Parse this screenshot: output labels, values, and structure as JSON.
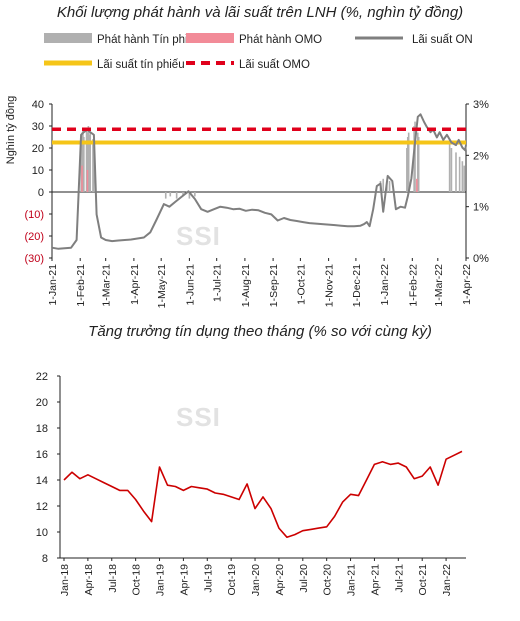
{
  "chart_data": [
    {
      "type": "line",
      "title": "Khối lượng phát hành và lãi suất trên LNH (%, nghìn tỷ đồng)",
      "ylabel": "Nghìn tỷ đồng",
      "ylim": [
        -30,
        40
      ],
      "y2lim": [
        0,
        3
      ],
      "yticks": [
        "40",
        "30",
        "20",
        "10",
        "0",
        "(10)",
        "(20)",
        "(30)"
      ],
      "yticks_right": [
        "3%",
        "2%",
        "1%",
        "0%"
      ],
      "x_tick_labels": [
        "1-Jan-21",
        "1-Feb-21",
        "1-Mar-21",
        "1-Apr-21",
        "1-May-21",
        "1-Jun-21",
        "1-Jul-21",
        "1-Aug-21",
        "1-Sep-21",
        "1-Oct-21",
        "1-Nov-21",
        "1-Dec-21",
        "1-Jan-22",
        "1-Feb-22",
        "1-Mar-22",
        "1-Apr-22"
      ],
      "legend": [
        "Phát hành Tín phiếu",
        "Phát hành OMO",
        "Lãi suất ON",
        "Lãi suất tín phiếu",
        "Lãi suất OMO"
      ],
      "legend_position": "top",
      "colors": {
        "bill_issuance": "#b0b0b0",
        "omo_issuance": "#f28b98",
        "on_rate": "#7f7f7f",
        "bill_rate": "#f5c518",
        "omo_rate": "#e0001b"
      },
      "series": [
        {
          "name": "Phát hành Tín phiếu",
          "kind": "bar",
          "axis": "left",
          "x": [
            "2021-02-02",
            "2021-02-03",
            "2021-02-04",
            "2021-02-05",
            "2021-02-08",
            "2021-02-09",
            "2021-02-10",
            "2021-02-11",
            "2021-02-12",
            "2021-02-15",
            "2021-02-16",
            "2021-05-06",
            "2021-05-11",
            "2021-05-18",
            "2021-05-25",
            "2021-06-01",
            "2021-06-07",
            "2021-12-28",
            "2021-12-31",
            "2022-01-04",
            "2022-01-07",
            "2022-01-26",
            "2022-01-27",
            "2022-01-28",
            "2022-02-03",
            "2022-02-04",
            "2022-02-07",
            "2022-02-08",
            "2022-03-14",
            "2022-03-16",
            "2022-03-21",
            "2022-03-25",
            "2022-03-28",
            "2022-03-30"
          ],
          "y": [
            22,
            27,
            29,
            25,
            28,
            27,
            30,
            26,
            27,
            24,
            18,
            -3,
            -2,
            -3,
            -2,
            -3,
            -2,
            5,
            6,
            4,
            5,
            20,
            25,
            27,
            30,
            32,
            27,
            25,
            22,
            20,
            18,
            16,
            14,
            12
          ]
        },
        {
          "name": "Phát hành OMO",
          "kind": "bar",
          "axis": "left",
          "x": [
            "2021-02-03",
            "2021-02-09",
            "2022-02-06"
          ],
          "y": [
            12,
            10,
            6
          ]
        },
        {
          "name": "Lãi suất ON",
          "kind": "line",
          "axis": "right",
          "x": [
            "2021-01-01",
            "2021-01-08",
            "2021-01-15",
            "2021-01-22",
            "2021-01-28",
            "2021-02-02",
            "2021-02-05",
            "2021-02-09",
            "2021-02-12",
            "2021-02-16",
            "2021-02-19",
            "2021-02-24",
            "2021-03-01",
            "2021-03-08",
            "2021-03-15",
            "2021-03-22",
            "2021-03-29",
            "2021-04-05",
            "2021-04-12",
            "2021-04-19",
            "2021-04-26",
            "2021-05-04",
            "2021-05-10",
            "2021-05-17",
            "2021-05-24",
            "2021-05-31",
            "2021-06-07",
            "2021-06-14",
            "2021-06-21",
            "2021-06-28",
            "2021-07-05",
            "2021-07-12",
            "2021-07-19",
            "2021-07-26",
            "2021-08-02",
            "2021-08-09",
            "2021-08-16",
            "2021-08-23",
            "2021-08-30",
            "2021-09-06",
            "2021-09-13",
            "2021-09-20",
            "2021-09-27",
            "2021-10-04",
            "2021-10-11",
            "2021-10-18",
            "2021-10-25",
            "2021-11-01",
            "2021-11-08",
            "2021-11-15",
            "2021-11-22",
            "2021-11-29",
            "2021-12-06",
            "2021-12-10",
            "2021-12-13",
            "2021-12-16",
            "2021-12-20",
            "2021-12-24",
            "2021-12-28",
            "2021-12-31",
            "2022-01-05",
            "2022-01-10",
            "2022-01-14",
            "2022-01-19",
            "2022-01-24",
            "2022-01-27",
            "2022-01-31",
            "2022-02-04",
            "2022-02-07",
            "2022-02-10",
            "2022-02-14",
            "2022-02-17",
            "2022-02-21",
            "2022-02-24",
            "2022-02-28",
            "2022-03-03",
            "2022-03-07",
            "2022-03-11",
            "2022-03-16",
            "2022-03-21",
            "2022-03-24",
            "2022-03-28",
            "2022-03-31",
            "2022-04-01"
          ],
          "y": [
            0.2,
            0.18,
            0.19,
            0.2,
            0.35,
            2.4,
            2.45,
            2.5,
            2.45,
            2.4,
            0.85,
            0.4,
            0.35,
            0.33,
            0.34,
            0.35,
            0.36,
            0.38,
            0.4,
            0.5,
            0.75,
            1.05,
            1.0,
            1.1,
            1.2,
            1.3,
            1.15,
            0.95,
            0.9,
            0.95,
            1.0,
            0.98,
            0.95,
            0.96,
            0.92,
            0.94,
            0.93,
            0.88,
            0.85,
            0.73,
            0.78,
            0.74,
            0.72,
            0.7,
            0.68,
            0.67,
            0.66,
            0.65,
            0.64,
            0.63,
            0.62,
            0.62,
            0.63,
            0.66,
            0.7,
            0.62,
            0.95,
            1.4,
            1.45,
            0.9,
            1.6,
            1.5,
            0.95,
            1.0,
            0.98,
            1.2,
            1.55,
            2.25,
            2.75,
            2.8,
            2.65,
            2.55,
            2.45,
            2.5,
            2.35,
            2.45,
            2.3,
            2.4,
            2.25,
            2.2,
            2.3,
            2.15,
            2.1,
            2.2
          ]
        },
        {
          "name": "Lãi suất tín phiếu",
          "kind": "line",
          "axis": "left",
          "x": [
            "2021-01-01",
            "2022-04-01"
          ],
          "y": [
            22.5,
            22.5
          ]
        },
        {
          "name": "Lãi suất OMO",
          "kind": "line",
          "axis": "left",
          "x": [
            "2021-01-01",
            "2022-04-01"
          ],
          "y": [
            28.5,
            28.5
          ]
        }
      ],
      "watermark": "SSI"
    },
    {
      "type": "line",
      "title": "Tăng trưởng tín dụng theo tháng (% so với cùng kỳ)",
      "ylim": [
        8,
        22
      ],
      "yticks": [
        "22",
        "20",
        "18",
        "16",
        "14",
        "12",
        "10",
        "8"
      ],
      "x_tick_labels": [
        "Jan-18",
        "Apr-18",
        "Jul-18",
        "Oct-18",
        "Jan-19",
        "Apr-19",
        "Jul-19",
        "Oct-19",
        "Jan-20",
        "Apr-20",
        "Jul-20",
        "Oct-20",
        "Jan-21",
        "Apr-21",
        "Jul-21",
        "Oct-21",
        "Jan-22"
      ],
      "colors": {
        "line": "#cc0000"
      },
      "series": [
        {
          "name": "",
          "x": [
            "Jan-18",
            "Feb-18",
            "Mar-18",
            "Apr-18",
            "May-18",
            "Jun-18",
            "Jul-18",
            "Aug-18",
            "Sep-18",
            "Oct-18",
            "Nov-18",
            "Dec-18",
            "Jan-19",
            "Feb-19",
            "Mar-19",
            "Apr-19",
            "May-19",
            "Jun-19",
            "Jul-19",
            "Aug-19",
            "Sep-19",
            "Oct-19",
            "Nov-19",
            "Dec-19",
            "Jan-20",
            "Feb-20",
            "Mar-20",
            "Apr-20",
            "May-20",
            "Jun-20",
            "Jul-20",
            "Aug-20",
            "Sep-20",
            "Oct-20",
            "Nov-20",
            "Dec-20",
            "Jan-21",
            "Feb-21",
            "Mar-21",
            "Apr-21",
            "May-21",
            "Jun-21",
            "Jul-21",
            "Aug-21",
            "Sep-21",
            "Oct-21",
            "Nov-21",
            "Dec-21",
            "Jan-22",
            "Feb-22",
            "Mar-22"
          ],
          "y": [
            14.0,
            14.6,
            14.1,
            14.4,
            14.1,
            13.8,
            13.5,
            13.2,
            13.2,
            12.5,
            11.6,
            10.8,
            15.0,
            13.6,
            13.5,
            13.2,
            13.5,
            13.4,
            13.3,
            13.0,
            12.9,
            12.7,
            12.5,
            13.7,
            11.8,
            12.7,
            11.8,
            10.3,
            9.6,
            9.8,
            10.1,
            10.2,
            10.3,
            10.4,
            11.2,
            12.3,
            12.9,
            12.8,
            14.0,
            15.2,
            15.4,
            15.2,
            15.3,
            15.0,
            14.1,
            14.3,
            15.0,
            13.6,
            15.6,
            15.9,
            16.2
          ]
        }
      ],
      "watermark": "SSI"
    }
  ]
}
